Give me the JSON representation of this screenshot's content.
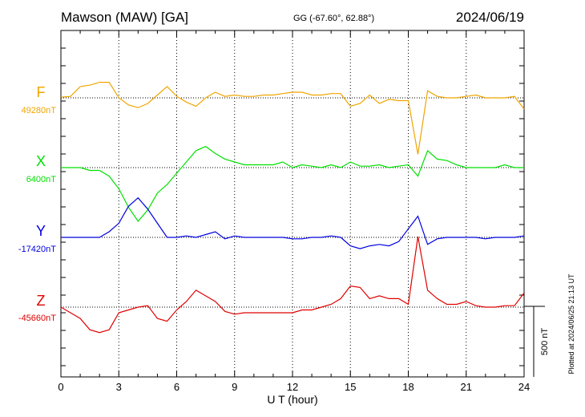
{
  "header": {
    "station": "Mawson (MAW)  [GA]",
    "coords": "GG (-67.60°,  62.88°)",
    "date": "2024/06/19"
  },
  "footer_note": "Plotted at 2024/06/25 21:13 UT",
  "chart_data": {
    "type": "line",
    "xlabel": "U T (hour)",
    "xlim": [
      0,
      24
    ],
    "xticks": [
      "0",
      "3",
      "6",
      "9",
      "12",
      "15",
      "18",
      "21",
      "24"
    ],
    "scale_bar": {
      "label": "500 nT",
      "value_nT": 500
    },
    "x": [
      0,
      0.5,
      1,
      1.5,
      2,
      2.5,
      3,
      3.5,
      4,
      4.5,
      5,
      5.5,
      6,
      6.5,
      7,
      7.5,
      8,
      8.5,
      9,
      9.5,
      10,
      10.5,
      11,
      11.5,
      12,
      12.5,
      13,
      13.5,
      14,
      14.5,
      15,
      15.5,
      16,
      16.5,
      17,
      17.5,
      18,
      18.5,
      19,
      19.5,
      20,
      20.5,
      21,
      21.5,
      22,
      22.5,
      23,
      23.5,
      24
    ],
    "series": [
      {
        "name": "F",
        "baseline_label": "49280nT",
        "color": "#f0a500",
        "values": [
          5,
          10,
          80,
          90,
          110,
          110,
          0,
          -50,
          -70,
          -40,
          20,
          80,
          10,
          -30,
          -60,
          0,
          40,
          10,
          20,
          10,
          10,
          20,
          20,
          30,
          40,
          40,
          20,
          20,
          30,
          30,
          -60,
          -40,
          20,
          -40,
          -10,
          -20,
          -20,
          -400,
          50,
          10,
          0,
          0,
          10,
          20,
          0,
          0,
          0,
          10,
          -80
        ]
      },
      {
        "name": "X",
        "baseline_label": "6400nT",
        "color": "#00e000",
        "values": [
          0,
          0,
          0,
          -20,
          -20,
          -60,
          -150,
          -280,
          -380,
          -300,
          -180,
          -120,
          -40,
          40,
          120,
          150,
          100,
          60,
          40,
          20,
          20,
          20,
          20,
          40,
          0,
          20,
          10,
          0,
          20,
          0,
          40,
          10,
          10,
          20,
          0,
          10,
          20,
          -60,
          120,
          60,
          50,
          20,
          0,
          0,
          0,
          0,
          20,
          0,
          0
        ]
      },
      {
        "name": "Y",
        "baseline_label": "-17420nT",
        "color": "#0000e0",
        "values": [
          0,
          0,
          0,
          0,
          0,
          40,
          100,
          220,
          280,
          200,
          100,
          0,
          0,
          10,
          0,
          20,
          40,
          -10,
          10,
          0,
          0,
          0,
          0,
          0,
          -10,
          -10,
          0,
          0,
          10,
          0,
          -60,
          -80,
          -60,
          -50,
          -60,
          -30,
          60,
          150,
          -50,
          -10,
          0,
          0,
          0,
          0,
          -10,
          0,
          0,
          0,
          10
        ]
      },
      {
        "name": "Z",
        "baseline_label": "-45660nT",
        "color": "#e00000",
        "values": [
          0,
          -40,
          -80,
          -160,
          -180,
          -160,
          -40,
          -20,
          0,
          10,
          -80,
          -100,
          -20,
          40,
          120,
          80,
          40,
          -30,
          -50,
          -40,
          -40,
          -40,
          -40,
          -40,
          -40,
          -20,
          -20,
          0,
          20,
          60,
          150,
          140,
          60,
          80,
          60,
          60,
          20,
          500,
          120,
          60,
          20,
          20,
          40,
          10,
          0,
          0,
          10,
          10,
          100
        ]
      }
    ]
  }
}
